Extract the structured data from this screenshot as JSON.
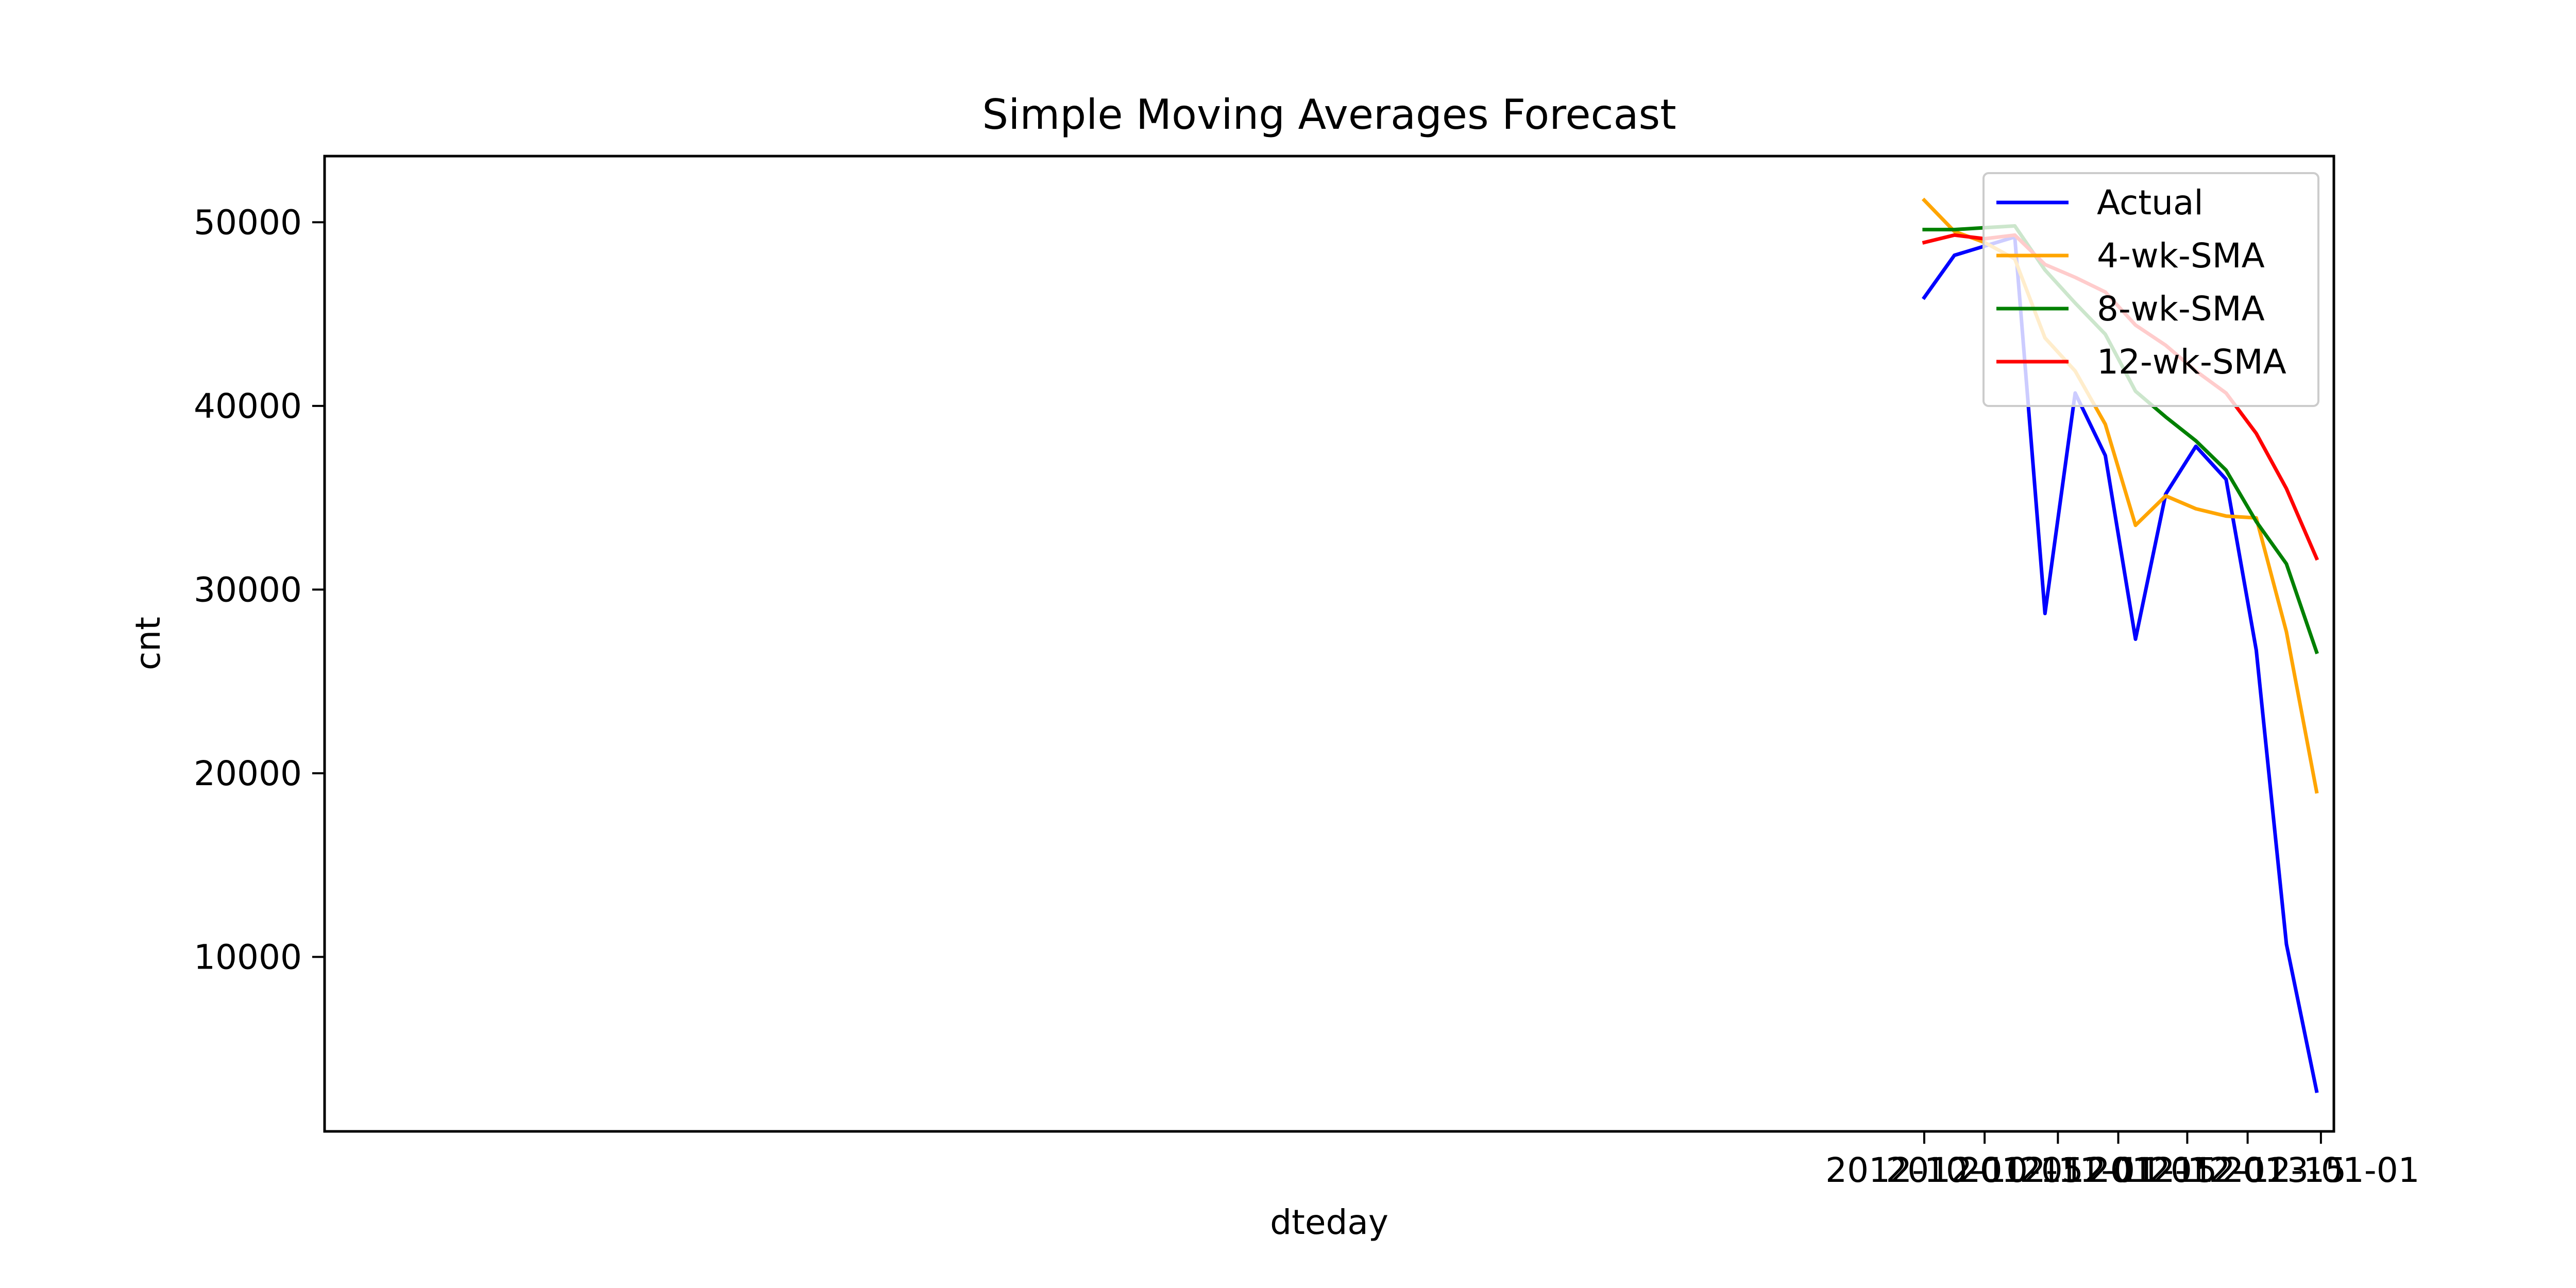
{
  "chart_data": {
    "type": "line",
    "title": "Simple Moving Averages Forecast",
    "xlabel": "dteday",
    "ylabel": "cnt",
    "x": [
      "2012-10-01",
      "2012-10-08",
      "2012-10-15",
      "2012-10-22",
      "2012-10-29",
      "2012-11-05",
      "2012-11-12",
      "2012-11-19",
      "2012-11-26",
      "2012-12-03",
      "2012-12-10",
      "2012-12-17",
      "2012-12-24",
      "2012-12-31"
    ],
    "xlim": [
      "2011-09-26",
      "2013-01-04"
    ],
    "ylim": [
      500,
      53600
    ],
    "x_ticks": [
      "2012-10-01",
      "2012-10-15",
      "2012-11-01",
      "2012-11-15",
      "2012-12-01",
      "2012-12-15",
      "2013-01-01"
    ],
    "y_ticks": [
      10000,
      20000,
      30000,
      40000,
      50000
    ],
    "grid": false,
    "legend_position": "upper right",
    "series": [
      {
        "name": "Actual",
        "color": "#0000ff",
        "values": [
          45900,
          48200,
          48700,
          49200,
          28700,
          40700,
          37300,
          27300,
          35200,
          37800,
          36000,
          26700,
          10700,
          2700
        ]
      },
      {
        "name": "4-wk-SMA",
        "color": "#ffa500",
        "values": [
          51200,
          49500,
          48900,
          48000,
          43700,
          41900,
          39000,
          33500,
          35100,
          34400,
          34000,
          33900,
          27700,
          19000
        ]
      },
      {
        "name": "8-wk-SMA",
        "color": "#008000",
        "values": [
          49600,
          49600,
          49700,
          49800,
          47400,
          45600,
          43900,
          40800,
          39400,
          38100,
          36500,
          33700,
          31400,
          26600
        ]
      },
      {
        "name": "12-wk-SMA",
        "color": "#ff0000",
        "values": [
          48900,
          49300,
          49100,
          49300,
          47700,
          47000,
          46200,
          44400,
          43300,
          41900,
          40700,
          38500,
          35500,
          31700
        ]
      }
    ]
  }
}
